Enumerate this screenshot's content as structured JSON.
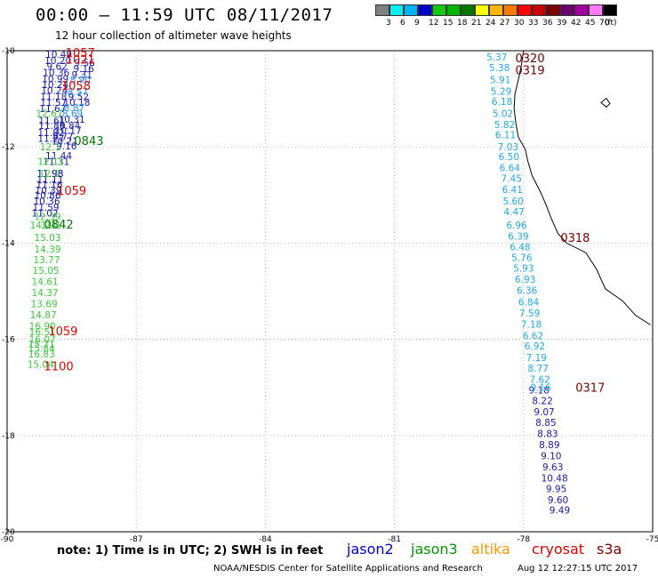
{
  "title": "00:00 – 11:59 UTC 08/11/2017",
  "subtitle": "12 hour collection of altimeter wave heights",
  "colorbar": {
    "colors": [
      "#808080",
      "#00f0f0",
      "#00b4ff",
      "#0000c8",
      "#14c814",
      "#00b400",
      "#007800",
      "#ffff00",
      "#ffb400",
      "#ff7800",
      "#ff0000",
      "#c80000",
      "#780000",
      "#6e006e",
      "#a000a0",
      "#ff78ff",
      "#000000"
    ],
    "labels": [
      "3",
      "6",
      "9",
      "12",
      "15",
      "18",
      "21",
      "24",
      "27",
      "30",
      "33",
      "36",
      "39",
      "42",
      "45",
      "70",
      "(ft)"
    ]
  },
  "axes": {
    "lon_labels": [
      "-90",
      "-87",
      "-84",
      "-81",
      "-78",
      "-75"
    ],
    "lat_labels": [
      "-10",
      "-12",
      "-14",
      "-16",
      "-18",
      "-20"
    ]
  },
  "tracks": [
    {
      "color": "#1a1aa8",
      "values": [
        {
          "lon": -88.8,
          "lat": -10.07,
          "v": "10.49"
        },
        {
          "lon": -88.82,
          "lat": -10.2,
          "v": "10.20"
        },
        {
          "lon": -88.84,
          "lat": -10.32,
          "v": "9.62"
        },
        {
          "lon": -88.86,
          "lat": -10.45,
          "v": "10.36"
        },
        {
          "lon": -88.88,
          "lat": -10.58,
          "v": "10.99"
        },
        {
          "lon": -88.88,
          "lat": -10.7,
          "v": "10.24"
        },
        {
          "lon": -88.9,
          "lat": -10.82,
          "v": "10.24"
        },
        {
          "lon": -88.92,
          "lat": -10.95,
          "v": "11.18"
        },
        {
          "lon": -88.92,
          "lat": -11.07,
          "v": "11.57"
        },
        {
          "lon": -88.94,
          "lat": -11.2,
          "v": "11.67"
        },
        {
          "lon": -88.96,
          "lat": -11.45,
          "v": "11.61"
        },
        {
          "lon": -88.96,
          "lat": -11.55,
          "v": "11.86"
        },
        {
          "lon": -88.98,
          "lat": -11.7,
          "v": "11.82"
        },
        {
          "lon": -88.98,
          "lat": -11.82,
          "v": "11.27"
        },
        {
          "lon": -89.0,
          "lat": -12.55,
          "v": "11.98"
        },
        {
          "lon": -89.02,
          "lat": -12.78,
          "v": "11.16"
        },
        {
          "lon": -89.04,
          "lat": -12.9,
          "v": "10.39"
        },
        {
          "lon": -89.06,
          "lat": -13.0,
          "v": "10.86"
        },
        {
          "lon": -89.08,
          "lat": -13.12,
          "v": "10.36"
        },
        {
          "lon": -89.1,
          "lat": -13.25,
          "v": "11.59"
        },
        {
          "lon": -89.12,
          "lat": -13.37,
          "v": "11.02"
        },
        {
          "lon": -88.2,
          "lat": -10.25,
          "v": "9.56"
        },
        {
          "lon": -88.22,
          "lat": -10.37,
          "v": "9.16"
        },
        {
          "lon": -88.26,
          "lat": -10.5,
          "v": "9.31"
        },
        {
          "lon": -88.34,
          "lat": -10.95,
          "v": "9.52"
        },
        {
          "lon": -88.38,
          "lat": -11.07,
          "v": "10.18"
        },
        {
          "lon": -88.5,
          "lat": -11.42,
          "v": "10.31"
        },
        {
          "lon": -88.54,
          "lat": -11.55,
          "v": "9.84"
        },
        {
          "lon": -88.58,
          "lat": -11.65,
          "v": "10.17"
        },
        {
          "lon": -88.66,
          "lat": -11.88,
          "v": "10.21"
        },
        {
          "lon": -88.62,
          "lat": -11.98,
          "v": "9.16"
        },
        {
          "lon": -88.7,
          "lat": -11.78,
          "v": "9.77"
        },
        {
          "lon": -88.8,
          "lat": -12.18,
          "v": "11.44"
        },
        {
          "lon": -88.86,
          "lat": -12.3,
          "v": "11.31"
        },
        {
          "lon": -89.0,
          "lat": -12.55,
          "v": "11.98"
        },
        {
          "lon": -89.0,
          "lat": -12.68,
          "v": "11.11"
        }
      ]
    },
    {
      "color": "#1e90ff",
      "values": [
        {
          "lon": -88.3,
          "lat": -10.6,
          "v": "8.90"
        },
        {
          "lon": -88.36,
          "lat": -10.85,
          "v": "8.57"
        },
        {
          "lon": -88.44,
          "lat": -11.18,
          "v": "8.87"
        },
        {
          "lon": -88.48,
          "lat": -11.3,
          "v": "8.69"
        }
      ]
    },
    {
      "color": "#22a8e8",
      "values": [
        {
          "lon": -78.62,
          "lat": -10.13,
          "v": "5.37"
        },
        {
          "lon": -78.56,
          "lat": -10.35,
          "v": "5.38"
        },
        {
          "lon": -78.54,
          "lat": -10.6,
          "v": "5.91"
        },
        {
          "lon": -78.52,
          "lat": -10.84,
          "v": "5.29"
        },
        {
          "lon": -78.5,
          "lat": -11.05,
          "v": "6.18"
        },
        {
          "lon": -78.48,
          "lat": -11.3,
          "v": "5.02"
        },
        {
          "lon": -78.44,
          "lat": -11.53,
          "v": "5.82"
        },
        {
          "lon": -78.42,
          "lat": -11.75,
          "v": "6.11"
        },
        {
          "lon": -78.36,
          "lat": -12.0,
          "v": "7.03"
        },
        {
          "lon": -78.34,
          "lat": -12.2,
          "v": "6.50"
        },
        {
          "lon": -78.32,
          "lat": -12.43,
          "v": "6.64"
        },
        {
          "lon": -78.28,
          "lat": -12.65,
          "v": "7.45"
        },
        {
          "lon": -78.26,
          "lat": -12.88,
          "v": "6.41"
        },
        {
          "lon": -78.24,
          "lat": -13.12,
          "v": "5.60"
        },
        {
          "lon": -78.22,
          "lat": -13.35,
          "v": "4.47"
        },
        {
          "lon": -78.16,
          "lat": -13.62,
          "v": "6.96"
        },
        {
          "lon": -78.12,
          "lat": -13.85,
          "v": "6.39"
        },
        {
          "lon": -78.08,
          "lat": -14.08,
          "v": "6.48"
        },
        {
          "lon": -78.04,
          "lat": -14.3,
          "v": "5.76"
        },
        {
          "lon": -78.0,
          "lat": -14.52,
          "v": "5.93"
        },
        {
          "lon": -77.96,
          "lat": -14.75,
          "v": "6.93"
        },
        {
          "lon": -77.92,
          "lat": -14.98,
          "v": "6.36"
        },
        {
          "lon": -77.88,
          "lat": -15.22,
          "v": "6.84"
        },
        {
          "lon": -77.86,
          "lat": -15.45,
          "v": "7.59"
        },
        {
          "lon": -77.82,
          "lat": -15.68,
          "v": "7.18"
        },
        {
          "lon": -77.78,
          "lat": -15.92,
          "v": "6.62"
        },
        {
          "lon": -77.74,
          "lat": -16.14,
          "v": "6.92"
        },
        {
          "lon": -77.7,
          "lat": -16.38,
          "v": "7.19"
        },
        {
          "lon": -77.66,
          "lat": -16.6,
          "v": "8.77"
        },
        {
          "lon": -77.62,
          "lat": -16.83,
          "v": "7.62"
        }
      ]
    },
    {
      "color": "#1a1aa8",
      "values": [
        {
          "lon": -77.64,
          "lat": -17.05,
          "v": "9.18"
        },
        {
          "lon": -77.56,
          "lat": -17.27,
          "v": "8.22"
        },
        {
          "lon": -77.52,
          "lat": -17.5,
          "v": "9.07"
        },
        {
          "lon": -77.48,
          "lat": -17.73,
          "v": "8.85"
        },
        {
          "lon": -77.44,
          "lat": -17.96,
          "v": "8.83"
        },
        {
          "lon": -77.4,
          "lat": -18.19,
          "v": "8.89"
        },
        {
          "lon": -77.36,
          "lat": -18.42,
          "v": "9.10"
        },
        {
          "lon": -77.32,
          "lat": -18.65,
          "v": "9.63"
        },
        {
          "lon": -77.28,
          "lat": -18.88,
          "v": "10.48"
        },
        {
          "lon": -77.24,
          "lat": -19.1,
          "v": "9.95"
        },
        {
          "lon": -77.2,
          "lat": -19.33,
          "v": "9.60"
        },
        {
          "lon": -77.16,
          "lat": -19.55,
          "v": "9.49"
        }
      ]
    },
    {
      "color": "#22a8e8",
      "values": [
        {
          "lon": -77.6,
          "lat": -17.0,
          "v": "9.16"
        }
      ]
    },
    {
      "color": "#3cc83c",
      "values": [
        {
          "lon": -89.02,
          "lat": -11.3,
          "v": "12.67"
        },
        {
          "lon": -89.0,
          "lat": -12.0,
          "v": "12.1"
        },
        {
          "lon": -88.98,
          "lat": -12.3,
          "v": "12.11"
        },
        {
          "lon": -89.02,
          "lat": -12.55,
          "v": "12.1"
        },
        {
          "lon": -89.06,
          "lat": -13.45,
          "v": "12.39"
        },
        {
          "lon": -89.16,
          "lat": -13.62,
          "v": "14.24"
        },
        {
          "lon": -88.98,
          "lat": -13.62,
          "v": "11.1"
        },
        {
          "lon": -89.06,
          "lat": -13.88,
          "v": "15.03"
        },
        {
          "lon": -89.06,
          "lat": -14.12,
          "v": "14.39"
        },
        {
          "lon": -89.08,
          "lat": -14.34,
          "v": "13.77"
        },
        {
          "lon": -89.1,
          "lat": -14.57,
          "v": "15.05"
        },
        {
          "lon": -89.12,
          "lat": -14.8,
          "v": "14.61"
        },
        {
          "lon": -89.12,
          "lat": -15.03,
          "v": "14.37"
        },
        {
          "lon": -89.14,
          "lat": -15.26,
          "v": "13.69"
        },
        {
          "lon": -89.16,
          "lat": -15.49,
          "v": "14.87"
        },
        {
          "lon": -89.18,
          "lat": -15.72,
          "v": "16.90"
        },
        {
          "lon": -89.18,
          "lat": -15.84,
          "v": "16.51"
        },
        {
          "lon": -89.18,
          "lat": -16.0,
          "v": "16.07"
        },
        {
          "lon": -89.2,
          "lat": -16.1,
          "v": "15.71"
        },
        {
          "lon": -89.2,
          "lat": -16.18,
          "v": "15.84"
        },
        {
          "lon": -89.2,
          "lat": -16.3,
          "v": "16.83"
        },
        {
          "lon": -89.22,
          "lat": -16.52,
          "v": "15.04"
        }
      ]
    }
  ],
  "pass_labels": [
    {
      "lon": -88.3,
      "lat": -10.04,
      "text": "1057",
      "color": "#e00000"
    },
    {
      "lon": -88.3,
      "lat": -10.18,
      "text": "1021",
      "color": "#e00000"
    },
    {
      "lon": -88.4,
      "lat": -10.72,
      "text": "1058",
      "color": "#e00000"
    },
    {
      "lon": -88.1,
      "lat": -11.87,
      "text": "0843",
      "color": "#007800"
    },
    {
      "lon": -88.5,
      "lat": -12.9,
      "text": "1059",
      "color": "#e00000"
    },
    {
      "lon": -88.8,
      "lat": -13.6,
      "text": "0842",
      "color": "#007800"
    },
    {
      "lon": -88.7,
      "lat": -15.82,
      "text": "1059",
      "color": "#e00000"
    },
    {
      "lon": -88.8,
      "lat": -16.55,
      "text": "1100",
      "color": "#e00000"
    },
    {
      "lon": -77.85,
      "lat": -10.15,
      "text": "0320",
      "color": "#780000"
    },
    {
      "lon": -77.85,
      "lat": -10.4,
      "text": "0319",
      "color": "#780000"
    },
    {
      "lon": -76.8,
      "lat": -13.88,
      "text": "0318",
      "color": "#780000"
    },
    {
      "lon": -76.45,
      "lat": -17.0,
      "text": "0317",
      "color": "#780000"
    }
  ],
  "note": "note: 1) Time is in UTC; 2) SWH is in feet",
  "legend": [
    {
      "text": "jason2",
      "color": "#0000c8"
    },
    {
      "text": "jason3",
      "color": "#009600"
    },
    {
      "text": "altika",
      "color": "#ff9600"
    },
    {
      "text": "cryosat",
      "color": "#e00000"
    },
    {
      "text": "s3a",
      "color": "#780000"
    }
  ],
  "footer": "NOAA/NESDIS Center for Satellite Applications and Research",
  "footer_date": "Aug 12 12:27:15 UTC 2017"
}
